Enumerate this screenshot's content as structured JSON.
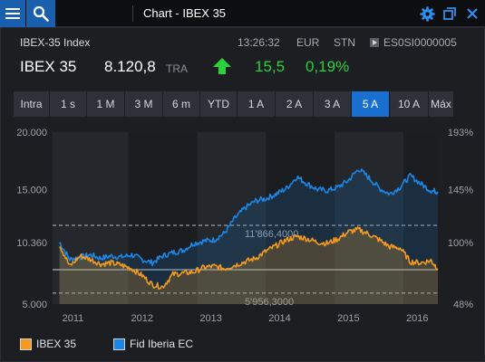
{
  "window": {
    "title": "Chart - IBEX 35",
    "icons": [
      "menu-icon",
      "search-icon",
      "gear-icon",
      "popout-icon",
      "close-icon"
    ]
  },
  "quote": {
    "index_name": "IBEX-35 Index",
    "time": "13:26:32",
    "currency": "EUR",
    "source": "STN",
    "isin": "ES0SI0000005",
    "ticker": "IBEX 35",
    "price": "8.120,8",
    "exchange": "TRA",
    "change": "15,5",
    "change_pct": "0,19%",
    "direction": "up",
    "up_color": "#29d23c"
  },
  "periods": {
    "items": [
      "Intra",
      "1 s",
      "1 M",
      "3 M",
      "6 m",
      "YTD",
      "1 A",
      "2 A",
      "3 A",
      "5 A",
      "10 A",
      "Máx"
    ],
    "selected": "5 A"
  },
  "chart_data": {
    "type": "line",
    "x_ticks": [
      "2011",
      "2012",
      "2013",
      "2014",
      "2015",
      "2016"
    ],
    "y_left_ticks": [
      "20.000",
      "15.000",
      "10.360",
      "5.000"
    ],
    "y_right_ticks": [
      "193%",
      "145%",
      "100%",
      "48%"
    ],
    "ylim": [
      5000,
      20000
    ],
    "reference_lines": [
      {
        "label": "11'866,4000",
        "value": 11866.4
      },
      {
        "label": "5'956,3000",
        "value": 5956.3
      }
    ],
    "base_value": 8000,
    "x": [
      2011.0,
      2011.15,
      2011.3,
      2011.45,
      2011.6,
      2011.75,
      2011.9,
      2012.05,
      2012.2,
      2012.35,
      2012.5,
      2012.65,
      2012.8,
      2012.95,
      2013.1,
      2013.25,
      2013.4,
      2013.55,
      2013.7,
      2013.85,
      2014.0,
      2014.15,
      2014.3,
      2014.45,
      2014.6,
      2014.75,
      2014.9,
      2015.05,
      2015.2,
      2015.35,
      2015.5,
      2015.65,
      2015.8,
      2015.95,
      2016.1,
      2016.25,
      2016.4,
      2016.5
    ],
    "series": [
      {
        "name": "IBEX 35",
        "color": "#f39a1e",
        "values": [
          10200,
          8300,
          9200,
          8900,
          8500,
          8600,
          8400,
          8100,
          7500,
          6700,
          6500,
          7600,
          7700,
          7800,
          8200,
          8300,
          8100,
          8400,
          8700,
          9000,
          9600,
          10100,
          10600,
          10900,
          10700,
          10400,
          10300,
          10700,
          11300,
          11500,
          11100,
          10600,
          10000,
          9900,
          8700,
          8600,
          8800,
          8100
        ]
      },
      {
        "name": "Fid Iberia EC",
        "color": "#1b86e6",
        "values": [
          10400,
          8900,
          9100,
          9300,
          9000,
          9200,
          9100,
          9300,
          8900,
          8600,
          9200,
          9500,
          9700,
          10300,
          10500,
          10600,
          11200,
          12500,
          13400,
          14000,
          14200,
          14600,
          15100,
          16100,
          15500,
          15000,
          14900,
          15200,
          15800,
          16800,
          16000,
          15100,
          14600,
          15200,
          16200,
          15500,
          14900,
          14800
        ]
      }
    ]
  },
  "legend": {
    "items": [
      {
        "label": "IBEX 35",
        "color": "#f39a1e"
      },
      {
        "label": "Fid Iberia EC",
        "color": "#1b86e6"
      }
    ]
  }
}
